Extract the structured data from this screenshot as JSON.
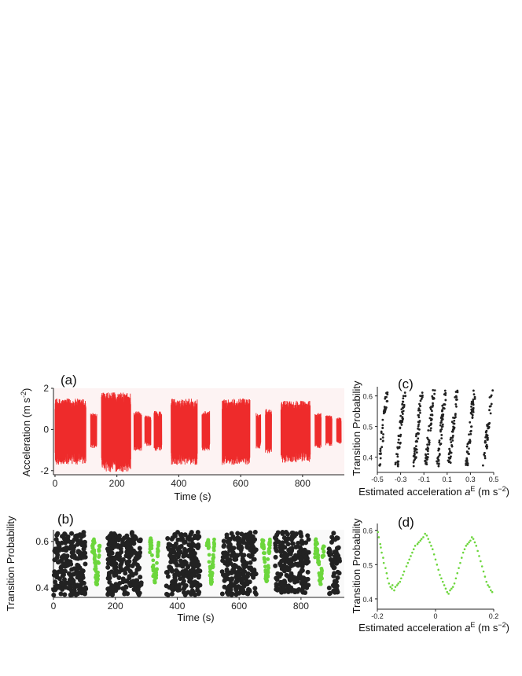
{
  "colors": {
    "acceleration": "#ee2b2b",
    "background_panel": "#fdf3f3",
    "dots_dark": "#222222",
    "dots_green": "#6cd63c"
  },
  "panels": {
    "a": {
      "label": "(a)",
      "ylabel": "Acceleration (m s",
      "ylabel_sup": "-2",
      "ylabel_close": ")",
      "xlabel": "Time (s)",
      "xticks": [
        "0",
        "200",
        "400",
        "600",
        "800"
      ],
      "yticks": [
        "2",
        "0",
        "-2"
      ]
    },
    "b": {
      "label": "(b)",
      "ylabel": "Transition Probability",
      "xlabel": "Time (s)",
      "xticks": [
        "0",
        "200",
        "400",
        "600",
        "800"
      ],
      "yticks": [
        "0.6",
        "0.4"
      ]
    },
    "c": {
      "label": "(c)",
      "ylabel": "Transition Probability",
      "xlabel_pre": "Estimated acceleration ",
      "xlabel_var": "a",
      "xlabel_sup": "E",
      "xlabel_post": " (m s",
      "xlabel_unit_sup": "−2",
      "xlabel_close": ")",
      "xticks": [
        "-0.5",
        "-0.3",
        "-0.1",
        "0.1",
        "0.3",
        "0.5"
      ],
      "yticks": [
        "0.6",
        "0.5",
        "0.4"
      ]
    },
    "d": {
      "label": "(d)",
      "ylabel": "Transition Probability",
      "xlabel_pre": "Estimated acceleration ",
      "xlabel_var": "a",
      "xlabel_sup": "E",
      "xlabel_post": " (m s",
      "xlabel_unit_sup": "−2",
      "xlabel_close": ")",
      "xticks": [
        "-0.2",
        "0",
        "0.2"
      ],
      "yticks": [
        "0.6",
        "0.5",
        "0.4"
      ]
    }
  },
  "chart_data": [
    {
      "panel": "a",
      "type": "area",
      "xlim": [
        -5,
        935
      ],
      "ylim": [
        -2.2,
        2
      ],
      "bursts": [
        {
          "t_start": 0,
          "t_end": 100,
          "amplitude": 1.5
        },
        {
          "t_start": 115,
          "t_end": 135,
          "amplitude": 0.8
        },
        {
          "t_start": 150,
          "t_end": 245,
          "amplitude": 1.8
        },
        {
          "t_start": 255,
          "t_end": 280,
          "amplitude": 0.9
        },
        {
          "t_start": 290,
          "t_end": 310,
          "amplitude": 0.7
        },
        {
          "t_start": 320,
          "t_end": 345,
          "amplitude": 0.9
        },
        {
          "t_start": 375,
          "t_end": 460,
          "amplitude": 1.5
        },
        {
          "t_start": 475,
          "t_end": 500,
          "amplitude": 0.9
        },
        {
          "t_start": 540,
          "t_end": 630,
          "amplitude": 1.5
        },
        {
          "t_start": 650,
          "t_end": 665,
          "amplitude": 0.8
        },
        {
          "t_start": 680,
          "t_end": 700,
          "amplitude": 1.0
        },
        {
          "t_start": 730,
          "t_end": 825,
          "amplitude": 1.4
        },
        {
          "t_start": 840,
          "t_end": 860,
          "amplitude": 0.8
        },
        {
          "t_start": 875,
          "t_end": 895,
          "amplitude": 0.7
        },
        {
          "t_start": 910,
          "t_end": 925,
          "amplitude": 0.6
        }
      ]
    },
    {
      "panel": "b",
      "type": "scatter",
      "xlim": [
        0,
        940
      ],
      "ylim": [
        0.36,
        0.65
      ],
      "segments": [
        {
          "t_start": 0,
          "t_end": 105,
          "color": "dark",
          "count": 220
        },
        {
          "t_start": 125,
          "t_end": 150,
          "color": "green",
          "count": 60
        },
        {
          "t_start": 175,
          "t_end": 285,
          "color": "dark",
          "count": 220
        },
        {
          "t_start": 310,
          "t_end": 340,
          "color": "green",
          "count": 60
        },
        {
          "t_start": 365,
          "t_end": 475,
          "color": "dark",
          "count": 220
        },
        {
          "t_start": 495,
          "t_end": 520,
          "color": "green",
          "count": 60
        },
        {
          "t_start": 545,
          "t_end": 655,
          "color": "dark",
          "count": 220
        },
        {
          "t_start": 672,
          "t_end": 700,
          "color": "green",
          "count": 60
        },
        {
          "t_start": 715,
          "t_end": 825,
          "color": "dark",
          "count": 220
        },
        {
          "t_start": 845,
          "t_end": 875,
          "color": "green",
          "count": 60
        },
        {
          "t_start": 890,
          "t_end": 925,
          "color": "dark",
          "count": 60
        }
      ]
    },
    {
      "panel": "c",
      "type": "scatter",
      "xlim": [
        -0.5,
        0.5
      ],
      "ylim": [
        0.35,
        0.63
      ],
      "clusters": [
        {
          "x_center": -0.45,
          "count": 45
        },
        {
          "x_center": -0.3,
          "count": 55
        },
        {
          "x_center": -0.15,
          "count": 55
        },
        {
          "x_center": -0.05,
          "count": 60
        },
        {
          "x_center": 0.05,
          "count": 60
        },
        {
          "x_center": 0.15,
          "count": 55
        },
        {
          "x_center": 0.3,
          "count": 55
        },
        {
          "x_center": 0.45,
          "count": 45
        }
      ]
    },
    {
      "panel": "d",
      "type": "scatter",
      "xlim": [
        -0.2,
        0.2
      ],
      "ylim": [
        0.37,
        0.62
      ],
      "points": [
        [
          -0.198,
          0.595
        ],
        [
          -0.195,
          0.58
        ],
        [
          -0.19,
          0.56
        ],
        [
          -0.188,
          0.55
        ],
        [
          -0.185,
          0.535
        ],
        [
          -0.18,
          0.52
        ],
        [
          -0.178,
          0.505
        ],
        [
          -0.172,
          0.49
        ],
        [
          -0.168,
          0.475
        ],
        [
          -0.165,
          0.46
        ],
        [
          -0.16,
          0.445
        ],
        [
          -0.155,
          0.435
        ],
        [
          -0.15,
          0.43
        ],
        [
          -0.148,
          0.44
        ],
        [
          -0.142,
          0.425
        ],
        [
          -0.138,
          0.435
        ],
        [
          -0.132,
          0.44
        ],
        [
          -0.128,
          0.445
        ],
        [
          -0.122,
          0.45
        ],
        [
          -0.118,
          0.46
        ],
        [
          -0.112,
          0.47
        ],
        [
          -0.108,
          0.48
        ],
        [
          -0.1,
          0.495
        ],
        [
          -0.095,
          0.505
        ],
        [
          -0.09,
          0.515
        ],
        [
          -0.085,
          0.525
        ],
        [
          -0.08,
          0.535
        ],
        [
          -0.075,
          0.545
        ],
        [
          -0.07,
          0.555
        ],
        [
          -0.062,
          0.56
        ],
        [
          -0.058,
          0.565
        ],
        [
          -0.052,
          0.57
        ],
        [
          -0.048,
          0.575
        ],
        [
          -0.042,
          0.58
        ],
        [
          -0.036,
          0.59
        ],
        [
          -0.03,
          0.585
        ],
        [
          -0.025,
          0.575
        ],
        [
          -0.02,
          0.565
        ],
        [
          -0.015,
          0.555
        ],
        [
          -0.01,
          0.545
        ],
        [
          -0.005,
          0.53
        ],
        [
          0.0,
          0.515
        ],
        [
          0.005,
          0.5
        ],
        [
          0.01,
          0.485
        ],
        [
          0.015,
          0.47
        ],
        [
          0.02,
          0.46
        ],
        [
          0.025,
          0.45
        ],
        [
          0.03,
          0.44
        ],
        [
          0.035,
          0.43
        ],
        [
          0.04,
          0.42
        ],
        [
          0.045,
          0.415
        ],
        [
          0.05,
          0.425
        ],
        [
          0.055,
          0.43
        ],
        [
          0.06,
          0.435
        ],
        [
          0.065,
          0.445
        ],
        [
          0.07,
          0.46
        ],
        [
          0.075,
          0.475
        ],
        [
          0.08,
          0.49
        ],
        [
          0.085,
          0.505
        ],
        [
          0.09,
          0.52
        ],
        [
          0.095,
          0.535
        ],
        [
          0.1,
          0.545
        ],
        [
          0.105,
          0.555
        ],
        [
          0.11,
          0.56
        ],
        [
          0.115,
          0.565
        ],
        [
          0.12,
          0.57
        ],
        [
          0.125,
          0.58
        ],
        [
          0.13,
          0.575
        ],
        [
          0.135,
          0.565
        ],
        [
          0.14,
          0.555
        ],
        [
          0.145,
          0.54
        ],
        [
          0.15,
          0.525
        ],
        [
          0.155,
          0.51
        ],
        [
          0.16,
          0.495
        ],
        [
          0.165,
          0.48
        ],
        [
          0.17,
          0.465
        ],
        [
          0.175,
          0.45
        ],
        [
          0.18,
          0.44
        ],
        [
          0.185,
          0.435
        ],
        [
          0.19,
          0.425
        ],
        [
          0.195,
          0.42
        ]
      ]
    }
  ]
}
